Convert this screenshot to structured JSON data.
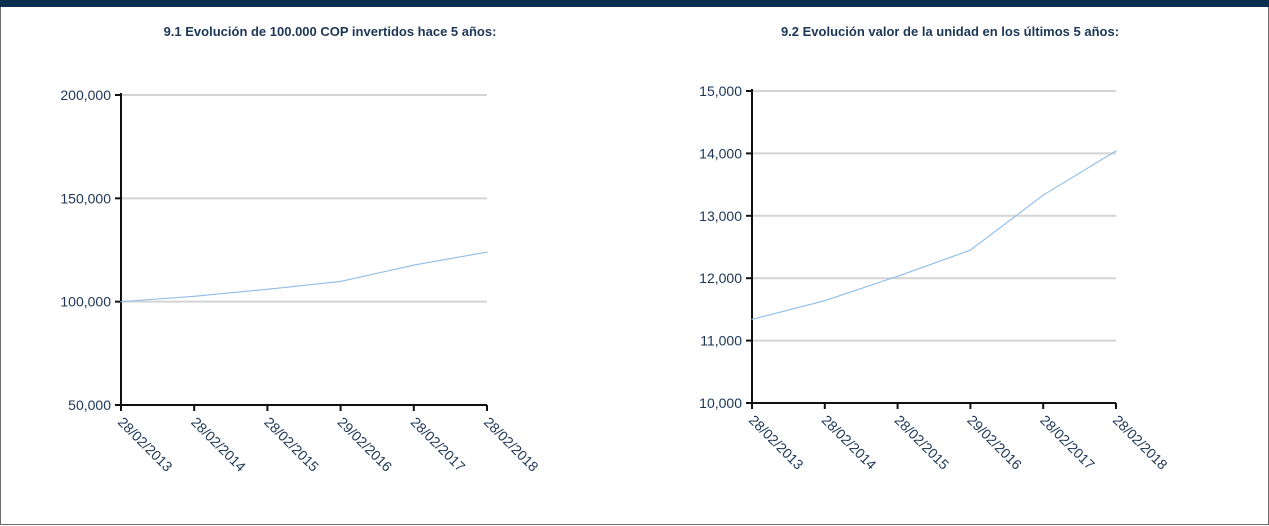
{
  "colors": {
    "header": "#0d2f4f",
    "title": "#1c3656",
    "gridline": "#d4d4d4",
    "axis": "#111111",
    "series": "#8fbde6"
  },
  "chart_data": [
    {
      "type": "line",
      "title": "9.1 Evolución de 100.000 COP invertidos hace 5 años:",
      "xlabel": "",
      "ylabel": "",
      "x": [
        "28/02/2013",
        "28/02/2014",
        "28/02/2015",
        "29/02/2016",
        "28/02/2017",
        "28/02/2018"
      ],
      "ylim": [
        50000,
        200000
      ],
      "yticks": [
        50000,
        100000,
        150000,
        200000
      ],
      "ytick_labels": [
        "50,000",
        "100,000",
        "150,000",
        "200,000"
      ],
      "grid": true,
      "series": [
        {
          "values": [
            100000,
            102600,
            106000,
            109800,
            117700,
            124000
          ]
        }
      ]
    },
    {
      "type": "line",
      "title": "9.2 Evolución valor de la unidad en los últimos 5 años:",
      "xlabel": "",
      "ylabel": "",
      "x": [
        "28/02/2013",
        "28/02/2014",
        "28/02/2015",
        "29/02/2016",
        "28/02/2017",
        "28/02/2018"
      ],
      "ylim": [
        10000,
        15000
      ],
      "yticks": [
        10000,
        11000,
        12000,
        13000,
        14000,
        15000
      ],
      "ytick_labels": [
        "10,000",
        "11,000",
        "12,000",
        "13,000",
        "14,000",
        "15,000"
      ],
      "grid": true,
      "series": [
        {
          "values": [
            11340,
            11640,
            12030,
            12450,
            13330,
            14040
          ]
        }
      ]
    }
  ]
}
